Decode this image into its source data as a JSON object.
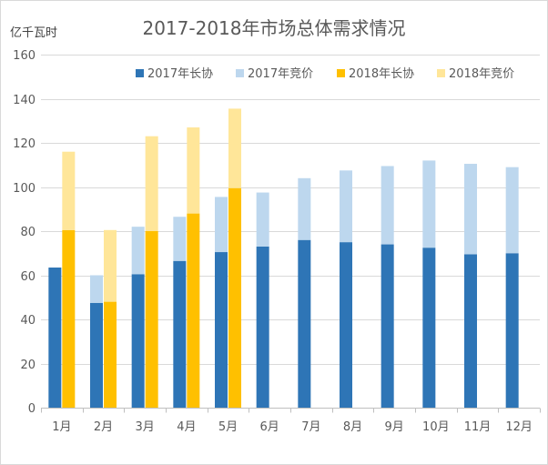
{
  "chart_data": {
    "type": "bar",
    "stacked": true,
    "title": "2017-2018年市场总体需求情况",
    "ylabel": "亿千瓦时",
    "categories": [
      "1月",
      "2月",
      "3月",
      "4月",
      "5月",
      "6月",
      "7月",
      "8月",
      "9月",
      "10月",
      "11月",
      "12月"
    ],
    "ylim": [
      0,
      160
    ],
    "yticks": [
      0,
      20,
      40,
      60,
      80,
      100,
      120,
      140,
      160
    ],
    "grid": true,
    "legend_position": "top",
    "stacks": [
      {
        "series": [
          {
            "name": "2017年长协",
            "color": "#2E75B6",
            "values": [
              63.5,
              47.5,
              60.5,
              66.5,
              70.5,
              73.0,
              76.0,
              75.0,
              74.0,
              72.5,
              69.5,
              70.0
            ]
          },
          {
            "name": "2017年竞价",
            "color": "#BDD7EE",
            "values": [
              0,
              12.5,
              21.5,
              20.0,
              25.0,
              24.5,
              28.0,
              32.5,
              35.5,
              39.5,
              41.0,
              39.0
            ]
          }
        ]
      },
      {
        "series": [
          {
            "name": "2018年长协",
            "color": "#FFC000",
            "values": [
              80.5,
              48.0,
              80.0,
              88.0,
              99.5,
              null,
              null,
              null,
              null,
              null,
              null,
              null
            ]
          },
          {
            "name": "2018年竞价",
            "color": "#FFE699",
            "values": [
              35.5,
              32.5,
              43.0,
              39.0,
              36.0,
              null,
              null,
              null,
              null,
              null,
              null,
              null
            ]
          }
        ]
      }
    ]
  }
}
